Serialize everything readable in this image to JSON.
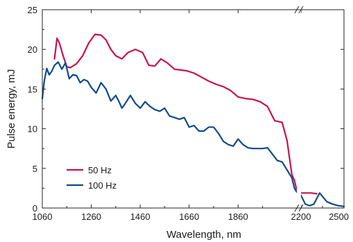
{
  "chart_data": {
    "type": "line",
    "xlabel": "Wavelength, nm",
    "ylabel": "Pulse energy, mJ",
    "ylim": [
      0,
      25
    ],
    "grid": false,
    "legend_position": "bottom-left",
    "x_axis_break": "between 2100 and 2200 nm",
    "x_tick_labels": [
      "1060",
      "1260",
      "1460",
      "1660",
      "1860",
      "2200",
      "2500"
    ],
    "y_tick_labels": [
      "0",
      "5",
      "10",
      "15",
      "20",
      "25"
    ],
    "series": [
      {
        "name": "50 Hz",
        "color": "#c8104e",
        "x": [
          1110,
          1120,
          1130,
          1145,
          1160,
          1175,
          1200,
          1225,
          1250,
          1275,
          1300,
          1320,
          1340,
          1360,
          1385,
          1410,
          1440,
          1470,
          1495,
          1520,
          1545,
          1570,
          1600,
          1625,
          1650,
          1680,
          1710,
          1740,
          1770,
          1800,
          1830,
          1860,
          1890,
          1920,
          1950,
          1980,
          2010,
          2040,
          2060,
          2080,
          2090,
          2100,
          2200,
          2230,
          2270,
          2310
        ],
        "y": [
          18.8,
          21.4,
          20.8,
          19.2,
          17.8,
          17.7,
          18.2,
          19.2,
          20.8,
          21.9,
          21.8,
          21.2,
          20.0,
          19.2,
          18.8,
          19.6,
          20.0,
          19.6,
          18.0,
          17.9,
          18.8,
          18.3,
          17.5,
          17.4,
          17.3,
          17.0,
          16.5,
          16.0,
          15.6,
          15.3,
          14.8,
          14.0,
          13.8,
          13.7,
          13.4,
          12.8,
          11.0,
          10.8,
          8.5,
          4.2,
          3.5,
          2.2,
          1.9,
          1.9,
          1.9,
          1.8
        ]
      },
      {
        "name": "100 Hz",
        "color": "#0d4a8c",
        "x": [
          1060,
          1068,
          1078,
          1088,
          1098,
          1110,
          1125,
          1140,
          1155,
          1170,
          1185,
          1200,
          1215,
          1230,
          1245,
          1260,
          1280,
          1300,
          1320,
          1340,
          1360,
          1375,
          1385,
          1395,
          1420,
          1440,
          1460,
          1480,
          1500,
          1520,
          1540,
          1560,
          1580,
          1600,
          1620,
          1640,
          1660,
          1680,
          1700,
          1720,
          1740,
          1760,
          1780,
          1800,
          1820,
          1840,
          1860,
          1880,
          1900,
          1920,
          1940,
          1960,
          1980,
          2000,
          2020,
          2040,
          2060,
          2080,
          2090,
          2100,
          2200,
          2230,
          2260,
          2290,
          2330,
          2380,
          2420,
          2460,
          2500
        ],
        "y": [
          13.8,
          16.0,
          17.6,
          16.8,
          17.2,
          18.0,
          18.4,
          17.5,
          18.3,
          16.3,
          16.8,
          16.7,
          15.8,
          16.2,
          16.0,
          15.2,
          14.5,
          15.8,
          15.0,
          13.5,
          14.2,
          13.3,
          12.6,
          13.0,
          14.2,
          13.2,
          12.6,
          13.4,
          12.8,
          12.4,
          12.2,
          12.6,
          11.6,
          11.4,
          11.2,
          11.4,
          10.2,
          10.4,
          9.7,
          9.7,
          10.2,
          10.2,
          9.4,
          8.4,
          8.0,
          7.8,
          8.7,
          8.0,
          7.6,
          7.5,
          7.5,
          7.5,
          7.6,
          6.8,
          6.0,
          5.8,
          4.8,
          3.8,
          2.5,
          2.0,
          1.6,
          0.5,
          0.3,
          0.5,
          1.9,
          0.8,
          0.5,
          0.3,
          0.2
        ]
      }
    ]
  }
}
